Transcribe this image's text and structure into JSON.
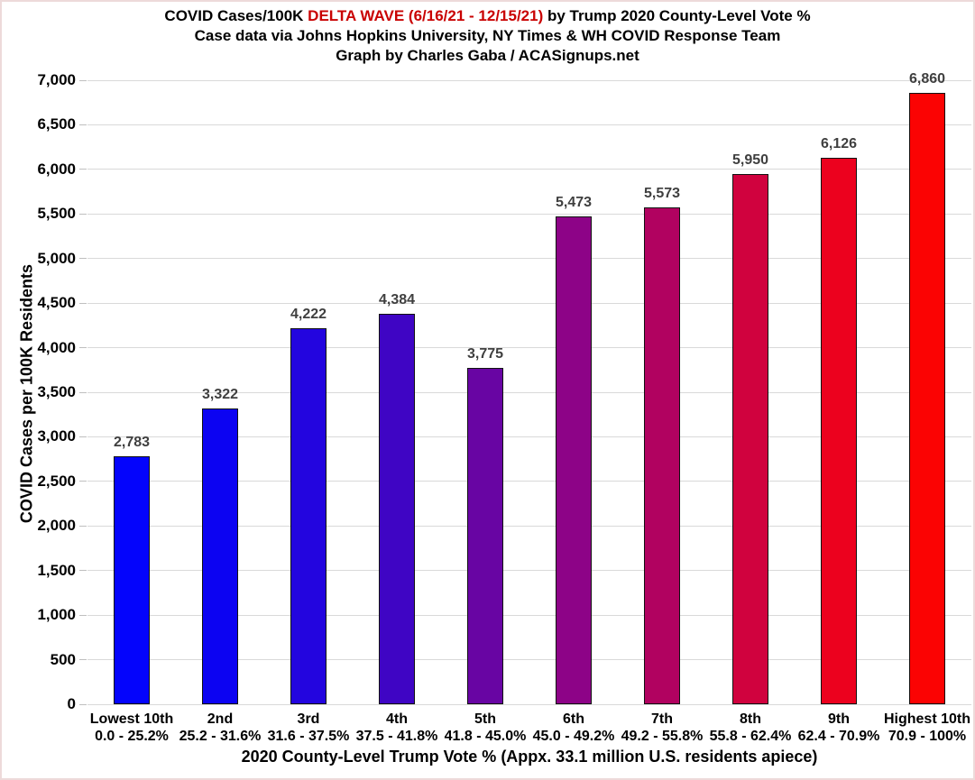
{
  "title": {
    "line1_prefix": "COVID Cases/100K ",
    "line1_highlight": "DELTA WAVE (6/16/21 - 12/15/21)",
    "line1_suffix": " by Trump 2020 County-Level Vote %",
    "line2": "Case data via Johns Hopkins University, NY Times & WH COVID Response Team",
    "line3": "Graph by Charles Gaba / ACASignups.net",
    "highlight_color": "#c90202"
  },
  "chart_data": {
    "type": "bar",
    "title": "COVID Cases/100K DELTA WAVE (6/16/21 - 12/15/21) by Trump 2020 County-Level Vote %",
    "subtitle": "Case data via Johns Hopkins University, NY Times & WH COVID Response Team",
    "credit": "Graph by Charles Gaba / ACASignups.net",
    "categories": [
      "Lowest 10th",
      "2nd",
      "3rd",
      "4th",
      "5th",
      "6th",
      "7th",
      "8th",
      "9th",
      "Highest 10th"
    ],
    "category_ranges": [
      "0.0 - 25.2%",
      "25.2 - 31.6%",
      "31.6 - 37.5%",
      "37.5 - 41.8%",
      "41.8 - 45.0%",
      "45.0 - 49.2%",
      "49.2 - 55.8%",
      "55.8 - 62.4%",
      "62.4 - 70.9%",
      "70.9 - 100%"
    ],
    "values": [
      2783,
      3322,
      4222,
      4384,
      3775,
      5473,
      5573,
      5950,
      6126,
      6860
    ],
    "value_labels": [
      "2,783",
      "3,322",
      "4,222",
      "4,384",
      "3,775",
      "5,473",
      "5,573",
      "5,950",
      "6,126",
      "6,860"
    ],
    "bar_colors": [
      "#0404fc",
      "#0c03f2",
      "#2305df",
      "#3f05c4",
      "#6805a3",
      "#8d0387",
      "#b10260",
      "#d0023e",
      "#ec011e",
      "#fb0303"
    ],
    "xlabel": "2020 County-Level Trump Vote % (Appx. 33.1 million U.S. residents apiece)",
    "ylabel": "COVID Cases per 100K Residents",
    "ylim": [
      0,
      7000
    ],
    "ytick_step": 500,
    "grid": true,
    "legend": false,
    "gridline_color": "#d9d9d9",
    "value_label_color": "#3f3f3f"
  }
}
